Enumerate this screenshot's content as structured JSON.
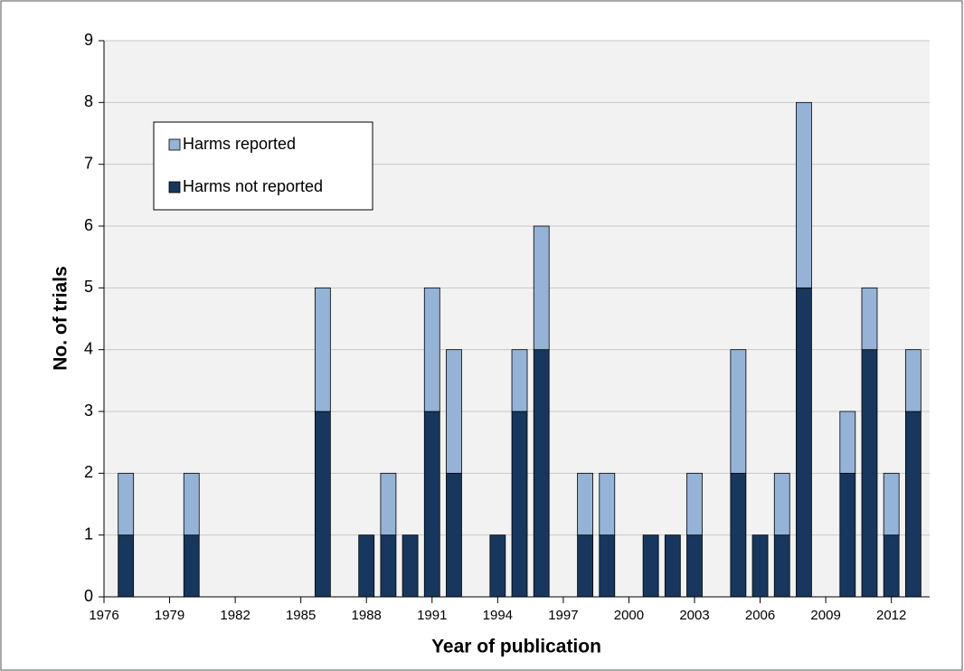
{
  "chart_data": {
    "type": "stacked_bar",
    "x_label": "Year of publication",
    "y_label": "No. of trials",
    "x": [
      1977,
      1980,
      1986,
      1988,
      1989,
      1990,
      1991,
      1992,
      1994,
      1995,
      1996,
      1998,
      1999,
      2001,
      2002,
      2003,
      2005,
      2006,
      2007,
      2008,
      2010,
      2011,
      2012,
      2013
    ],
    "series": [
      {
        "name": "Harms not reported",
        "color": "#17375e",
        "values": [
          1,
          1,
          3,
          1,
          1,
          1,
          3,
          2,
          1,
          3,
          4,
          1,
          1,
          1,
          1,
          1,
          2,
          1,
          1,
          5,
          2,
          4,
          1,
          3
        ]
      },
      {
        "name": "Harms reported",
        "color": "#95b3d7",
        "values": [
          1,
          1,
          2,
          0,
          1,
          0,
          2,
          2,
          0,
          1,
          2,
          1,
          1,
          0,
          0,
          1,
          2,
          0,
          1,
          3,
          1,
          1,
          1,
          1
        ]
      }
    ],
    "xlim": [
      1976,
      2013.75
    ],
    "xticks": [
      1976,
      1979,
      1982,
      1985,
      1988,
      1991,
      1994,
      1997,
      2000,
      2003,
      2006,
      2009,
      2012
    ],
    "ylim": [
      0,
      9
    ],
    "yticks": [
      0,
      1,
      2,
      3,
      4,
      5,
      6,
      7,
      8,
      9
    ],
    "grid": true,
    "legend": "upper left"
  }
}
